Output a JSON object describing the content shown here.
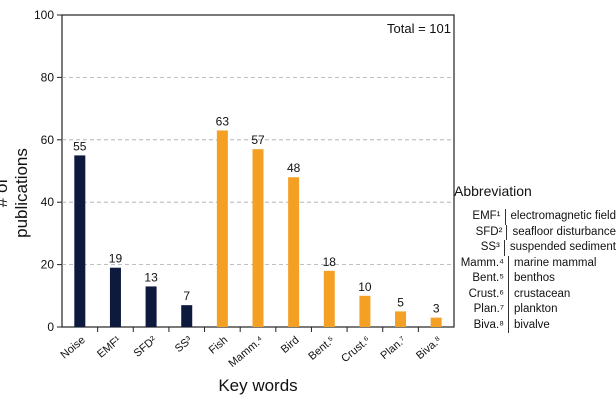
{
  "chart_data": {
    "type": "bar",
    "xlabel": "Key words",
    "ylabel": "# of publications",
    "ylim": [
      0,
      100
    ],
    "yticks": [
      0,
      20,
      40,
      60,
      80,
      100
    ],
    "annotation": "Total = 101",
    "grid": "horizontal dashed",
    "categories": [
      "Noise",
      "EMF¹",
      "SFD²",
      "SS³",
      "Fish",
      "Mamm.⁴",
      "Bird",
      "Bent.⁵",
      "Crust.⁶",
      "Plan.⁷",
      "Biva.⁸"
    ],
    "values": [
      55,
      19,
      13,
      7,
      63,
      57,
      48,
      18,
      10,
      5,
      3
    ],
    "colors": [
      "#0d1a3e",
      "#0d1a3e",
      "#0d1a3e",
      "#0d1a3e",
      "#f4a025",
      "#f4a025",
      "#f4a025",
      "#f4a025",
      "#f4a025",
      "#f4a025",
      "#f4a025"
    ]
  },
  "abbreviation": {
    "title": "Abbreviation",
    "items": [
      {
        "key": "EMF¹",
        "value": "electromagnetic field"
      },
      {
        "key": "SFD²",
        "value": "seafloor disturbance"
      },
      {
        "key": "SS³",
        "value": "suspended sediment"
      },
      {
        "key": "Mamm.⁴",
        "value": "marine mammal"
      },
      {
        "key": "Bent.⁵",
        "value": "benthos"
      },
      {
        "key": "Crust.⁶",
        "value": "crustacean"
      },
      {
        "key": "Plan.⁷",
        "value": "plankton"
      },
      {
        "key": "Biva.⁸",
        "value": "bivalve"
      }
    ]
  }
}
